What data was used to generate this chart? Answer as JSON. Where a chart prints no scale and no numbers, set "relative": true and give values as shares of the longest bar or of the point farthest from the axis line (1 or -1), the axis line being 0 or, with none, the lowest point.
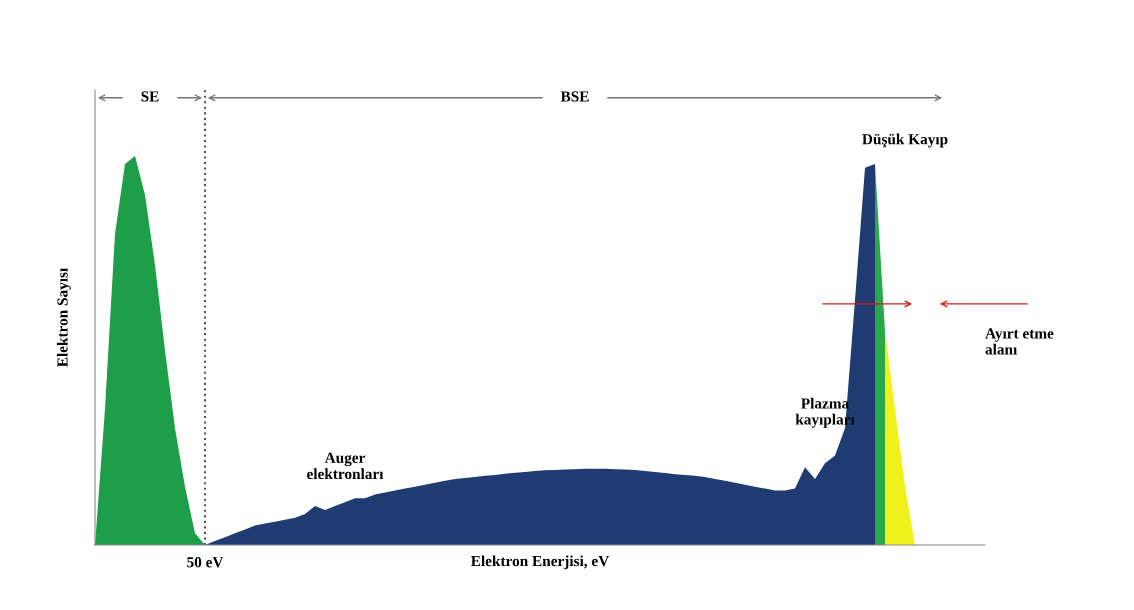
{
  "chart_data": {
    "type": "area",
    "relative": true,
    "xlabel": "Elektron Enerjisi, eV",
    "ylabel": "Elektron Sayısı",
    "categories": [
      null,
      null,
      null,
      null,
      null,
      null,
      null,
      null,
      null,
      null,
      null,
      null,
      null,
      null,
      null,
      null,
      null,
      null,
      null,
      null,
      null,
      null,
      null,
      null,
      null,
      null,
      null,
      null,
      null,
      null,
      null,
      null,
      null,
      null,
      null,
      null,
      null,
      null,
      null,
      null,
      null,
      null,
      null,
      null,
      null,
      null,
      null,
      null,
      null,
      null,
      null,
      null,
      null,
      null,
      null,
      null,
      null,
      null,
      null,
      null,
      null,
      null,
      null,
      null,
      null,
      null,
      null,
      null,
      null,
      null,
      null,
      null,
      null,
      null,
      null,
      null,
      null,
      null,
      null,
      null,
      null,
      null,
      null,
      null,
      null,
      null,
      null,
      null,
      null
    ],
    "series": [
      {
        "color": "#1f9e4a",
        "values": [
          0,
          0.35,
          0.8,
          0.98,
          1.0,
          0.9,
          0.72,
          0.5,
          0.3,
          0.15,
          0.03,
          0,
          null,
          null,
          null,
          null,
          null,
          null,
          null,
          null,
          null,
          null,
          null,
          null,
          null,
          null,
          null,
          null,
          null,
          null,
          null,
          null,
          null,
          null,
          null,
          null,
          null,
          null,
          null,
          null,
          null,
          null,
          null,
          null,
          null,
          null,
          null,
          null,
          null,
          null,
          null,
          null,
          null,
          null,
          null,
          null,
          null,
          null,
          null,
          null,
          null,
          null,
          null,
          null,
          null,
          null,
          null,
          null,
          null,
          null,
          null,
          null,
          null,
          null,
          null,
          null,
          null,
          null,
          null,
          null,
          null,
          null,
          null,
          null,
          null,
          null,
          null,
          null,
          null
        ]
      },
      {
        "color": "#1f3b72",
        "values": [
          null,
          null,
          null,
          null,
          null,
          null,
          null,
          null,
          null,
          null,
          null,
          0,
          0.01,
          0.02,
          0.03,
          0.04,
          0.05,
          0.055,
          0.06,
          0.065,
          0.07,
          0.08,
          0.1,
          0.09,
          0.1,
          0.11,
          0.12,
          0.12,
          0.13,
          0.135,
          0.14,
          0.145,
          0.15,
          0.155,
          0.16,
          0.165,
          0.17,
          0.172,
          0.175,
          0.178,
          0.18,
          0.183,
          0.186,
          0.188,
          0.19,
          0.192,
          0.193,
          0.194,
          0.195,
          0.196,
          0.196,
          0.196,
          0.195,
          0.194,
          0.193,
          0.19,
          0.188,
          0.185,
          0.182,
          0.18,
          0.178,
          0.175,
          0.17,
          0.165,
          0.16,
          0.155,
          0.15,
          0.145,
          0.14,
          0.14,
          0.145,
          0.2,
          0.17,
          0.21,
          0.23,
          0.3,
          0.63,
          0.97,
          0.98,
          null,
          null,
          null,
          null,
          null,
          null,
          null,
          null,
          null,
          null
        ]
      },
      {
        "color": "#2aa84a",
        "values": [
          null,
          null,
          null,
          null,
          null,
          null,
          null,
          null,
          null,
          null,
          null,
          null,
          null,
          null,
          null,
          null,
          null,
          null,
          null,
          null,
          null,
          null,
          null,
          null,
          null,
          null,
          null,
          null,
          null,
          null,
          null,
          null,
          null,
          null,
          null,
          null,
          null,
          null,
          null,
          null,
          null,
          null,
          null,
          null,
          null,
          null,
          null,
          null,
          null,
          null,
          null,
          null,
          null,
          null,
          null,
          null,
          null,
          null,
          null,
          null,
          null,
          null,
          null,
          null,
          null,
          null,
          null,
          null,
          null,
          null,
          null,
          null,
          null,
          null,
          null,
          null,
          null,
          null,
          0.98,
          0.55,
          null,
          null,
          null,
          null,
          null,
          null,
          null,
          null,
          null
        ]
      },
      {
        "color": "#f0f01a",
        "values": [
          null,
          null,
          null,
          null,
          null,
          null,
          null,
          null,
          null,
          null,
          null,
          null,
          null,
          null,
          null,
          null,
          null,
          null,
          null,
          null,
          null,
          null,
          null,
          null,
          null,
          null,
          null,
          null,
          null,
          null,
          null,
          null,
          null,
          null,
          null,
          null,
          null,
          null,
          null,
          null,
          null,
          null,
          null,
          null,
          null,
          null,
          null,
          null,
          null,
          null,
          null,
          null,
          null,
          null,
          null,
          null,
          null,
          null,
          null,
          null,
          null,
          null,
          null,
          null,
          null,
          null,
          null,
          null,
          null,
          null,
          null,
          null,
          null,
          null,
          null,
          null,
          null,
          null,
          null,
          0.55,
          0.35,
          0.15,
          0,
          null,
          null,
          null,
          null,
          null,
          null
        ]
      }
    ],
    "annotations": [
      "SE",
      "BSE",
      "Auger\nelektronları",
      "Plazma\nkayıpları",
      "Düşük Kayıp",
      "Ayırt etme\nalanı",
      "50 eV"
    ]
  }
}
